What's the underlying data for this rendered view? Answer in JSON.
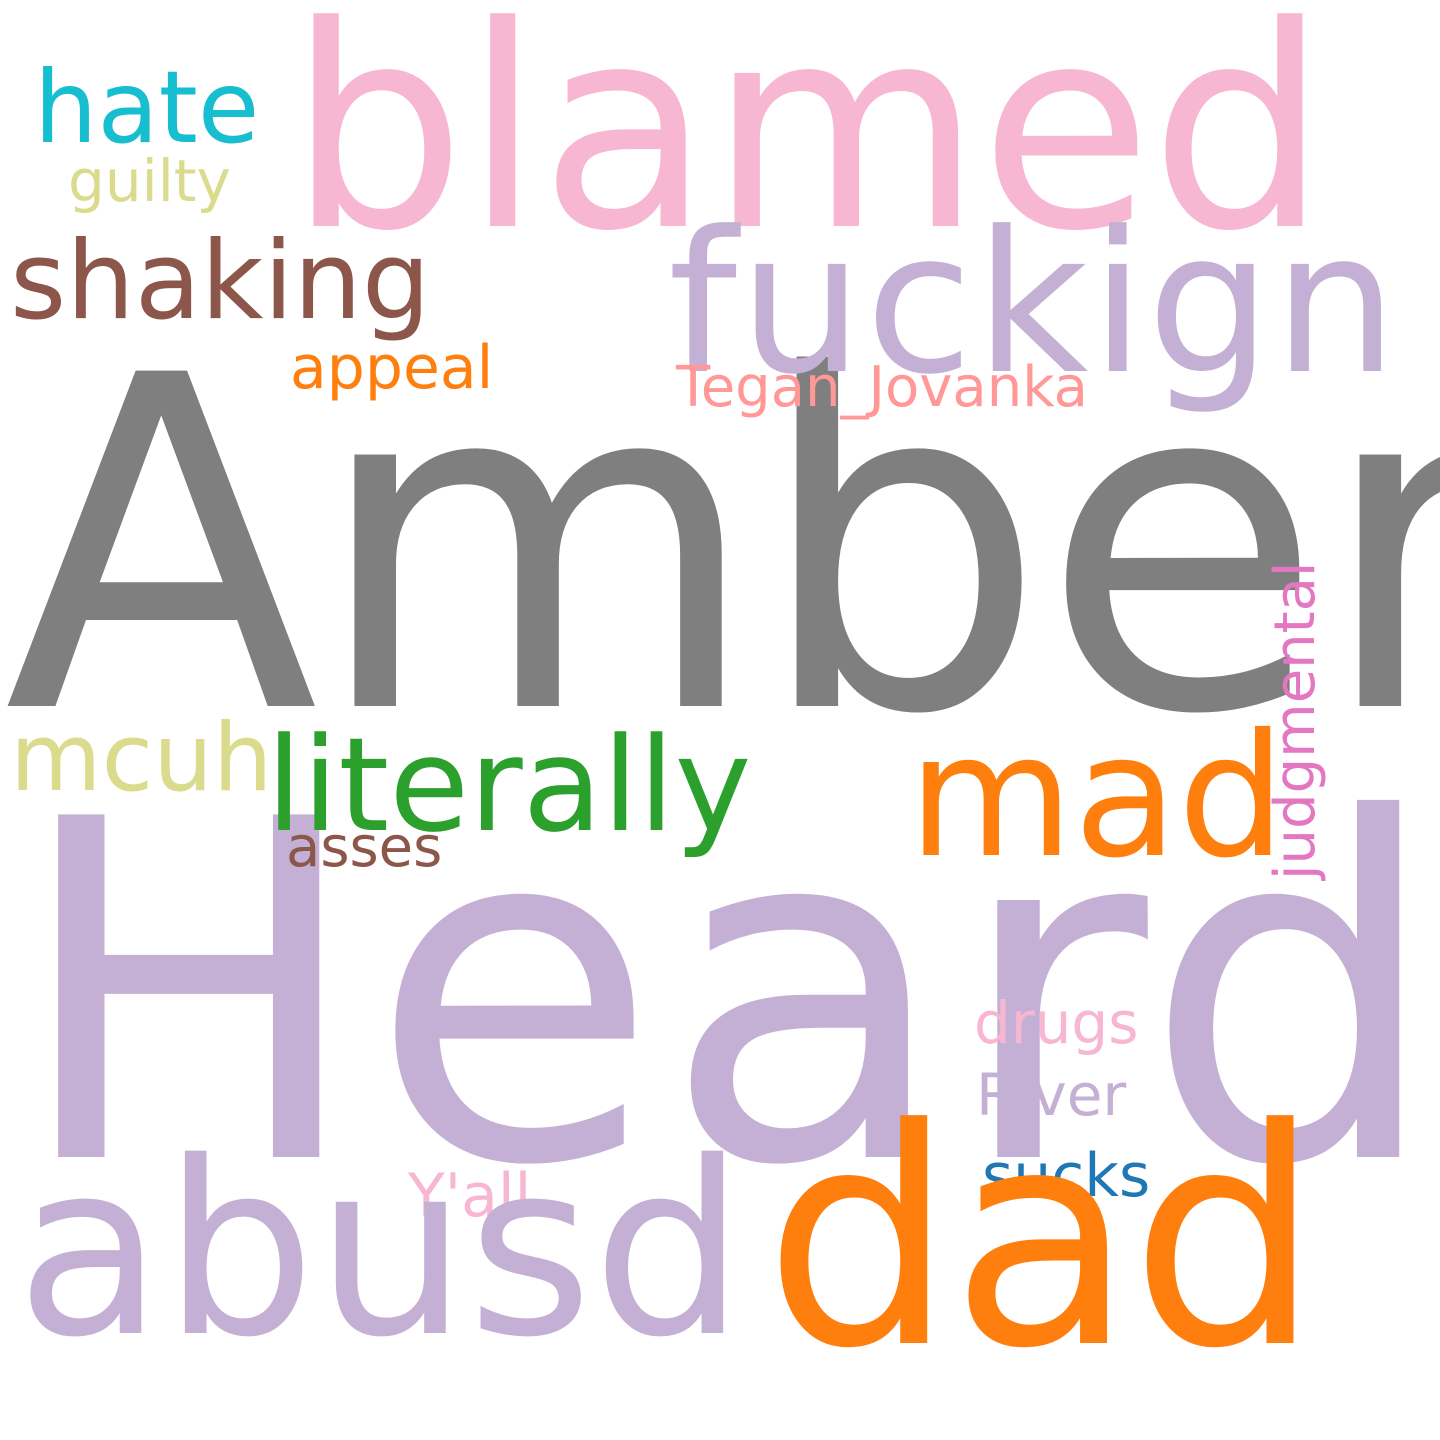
{
  "canvas": {
    "background": "#ffffff"
  },
  "words": {
    "amber": {
      "text": "Amber",
      "color": "#7f7f7f"
    },
    "heard": {
      "text": "Heard",
      "color": "#c5b0d5"
    },
    "blamed": {
      "text": "blamed",
      "color": "#f7b6d2"
    },
    "fuckign": {
      "text": "fuckign",
      "color": "#c5b0d5"
    },
    "hate": {
      "text": "hate",
      "color": "#17becf"
    },
    "guilty": {
      "text": "guilty",
      "color": "#dbdb8d"
    },
    "shaking": {
      "text": "shaking",
      "color": "#8c564b"
    },
    "appeal": {
      "text": "appeal",
      "color": "#ff7f0e"
    },
    "tegan": {
      "text": "Tegan_Jovanka",
      "color": "#ff9896"
    },
    "mcuh": {
      "text": "mcuh",
      "color": "#dbdb8d"
    },
    "literally": {
      "text": "literally",
      "color": "#2ca02c"
    },
    "mad": {
      "text": "mad",
      "color": "#ff7f0e"
    },
    "asses": {
      "text": "asses",
      "color": "#8c564b"
    },
    "judgmental": {
      "text": "judgmental",
      "color": "#e377c2",
      "orientation": "vertical"
    },
    "drugs": {
      "text": "drugs",
      "color": "#f7b6d2"
    },
    "river": {
      "text": "River",
      "color": "#c5b0d5"
    },
    "sucks": {
      "text": "sucks",
      "color": "#1f77b4"
    },
    "yall": {
      "text": "Y'all",
      "color": "#f7b6d2"
    },
    "abusd": {
      "text": "abusd",
      "color": "#c5b0d5"
    },
    "dad": {
      "text": "dad",
      "color": "#ff7f0e"
    }
  }
}
